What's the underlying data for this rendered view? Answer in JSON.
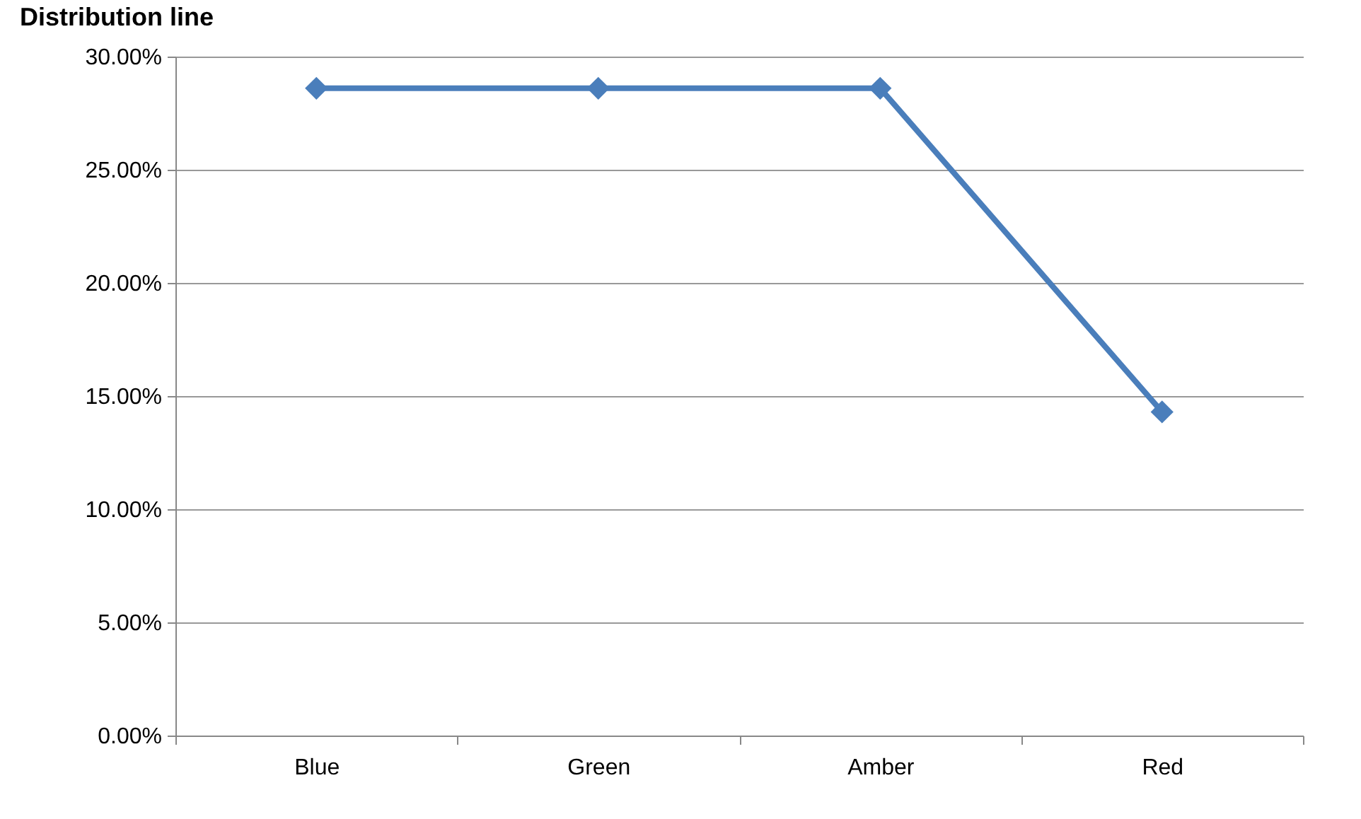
{
  "chart_data": {
    "type": "line",
    "title": "Distribution line",
    "categories": [
      "Blue",
      "Green",
      "Amber",
      "Red"
    ],
    "series": [
      {
        "color": "#4a7ebb",
        "values": [
          28.6,
          28.6,
          28.6,
          14.3
        ]
      }
    ],
    "ylim": [
      0,
      30
    ],
    "yticks": [
      {
        "value": 0,
        "label": "0.00%"
      },
      {
        "value": 5,
        "label": "5.00%"
      },
      {
        "value": 10,
        "label": "10.00%"
      },
      {
        "value": 15,
        "label": "15.00%"
      },
      {
        "value": 20,
        "label": "20.00%"
      },
      {
        "value": 25,
        "label": "25.00%"
      },
      {
        "value": 30,
        "label": "30.00%"
      }
    ],
    "grid": "y",
    "marker": "diamond",
    "line_style": "solid"
  }
}
